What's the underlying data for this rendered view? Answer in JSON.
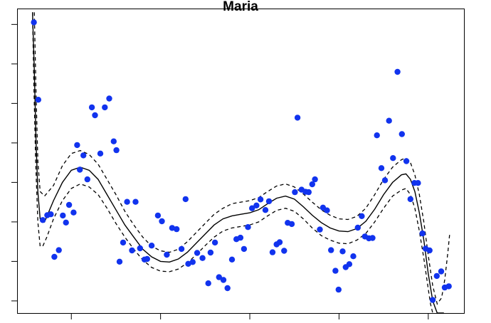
{
  "chart_data": {
    "type": "scatter",
    "title": "Maria",
    "xlabel": "",
    "ylabel": "",
    "xlim": [
      0,
      1
    ],
    "ylim": [
      0,
      1
    ],
    "x_ticks": [
      0.12,
      0.32,
      0.52,
      0.72,
      0.92
    ],
    "y_ticks": [
      0.04,
      0.17,
      0.3,
      0.43,
      0.56,
      0.69,
      0.82,
      0.95
    ],
    "grid": false,
    "legend": "none",
    "colors": {
      "points": "#1133ee",
      "fit": "#000000",
      "band": "#000000"
    },
    "points": [
      [
        0.036,
        0.957
      ],
      [
        0.046,
        0.702
      ],
      [
        0.056,
        0.306
      ],
      [
        0.066,
        0.322
      ],
      [
        0.074,
        0.325
      ],
      [
        0.082,
        0.185
      ],
      [
        0.092,
        0.207
      ],
      [
        0.101,
        0.321
      ],
      [
        0.108,
        0.298
      ],
      [
        0.115,
        0.356
      ],
      [
        0.125,
        0.331
      ],
      [
        0.133,
        0.553
      ],
      [
        0.139,
        0.472
      ],
      [
        0.147,
        0.519
      ],
      [
        0.156,
        0.44
      ],
      [
        0.166,
        0.677
      ],
      [
        0.173,
        0.651
      ],
      [
        0.185,
        0.525
      ],
      [
        0.195,
        0.677
      ],
      [
        0.205,
        0.706
      ],
      [
        0.215,
        0.565
      ],
      [
        0.221,
        0.536
      ],
      [
        0.228,
        0.169
      ],
      [
        0.236,
        0.232
      ],
      [
        0.245,
        0.366
      ],
      [
        0.256,
        0.206
      ],
      [
        0.264,
        0.366
      ],
      [
        0.274,
        0.213
      ],
      [
        0.284,
        0.176
      ],
      [
        0.29,
        0.178
      ],
      [
        0.3,
        0.222
      ],
      [
        0.314,
        0.321
      ],
      [
        0.323,
        0.302
      ],
      [
        0.334,
        0.192
      ],
      [
        0.346,
        0.28
      ],
      [
        0.356,
        0.276
      ],
      [
        0.367,
        0.211
      ],
      [
        0.376,
        0.375
      ],
      [
        0.382,
        0.162
      ],
      [
        0.392,
        0.168
      ],
      [
        0.402,
        0.198
      ],
      [
        0.414,
        0.181
      ],
      [
        0.427,
        0.098
      ],
      [
        0.432,
        0.199
      ],
      [
        0.442,
        0.232
      ],
      [
        0.451,
        0.118
      ],
      [
        0.461,
        0.109
      ],
      [
        0.47,
        0.082
      ],
      [
        0.48,
        0.176
      ],
      [
        0.49,
        0.243
      ],
      [
        0.499,
        0.248
      ],
      [
        0.507,
        0.211
      ],
      [
        0.516,
        0.283
      ],
      [
        0.525,
        0.345
      ],
      [
        0.535,
        0.354
      ],
      [
        0.544,
        0.374
      ],
      [
        0.555,
        0.339
      ],
      [
        0.563,
        0.368
      ],
      [
        0.571,
        0.2
      ],
      [
        0.58,
        0.226
      ],
      [
        0.587,
        0.233
      ],
      [
        0.597,
        0.205
      ],
      [
        0.605,
        0.297
      ],
      [
        0.614,
        0.293
      ],
      [
        0.621,
        0.398
      ],
      [
        0.627,
        0.643
      ],
      [
        0.636,
        0.406
      ],
      [
        0.645,
        0.399
      ],
      [
        0.652,
        0.398
      ],
      [
        0.66,
        0.424
      ],
      [
        0.666,
        0.44
      ],
      [
        0.677,
        0.275
      ],
      [
        0.684,
        0.347
      ],
      [
        0.693,
        0.338
      ],
      [
        0.702,
        0.207
      ],
      [
        0.712,
        0.139
      ],
      [
        0.719,
        0.077
      ],
      [
        0.728,
        0.203
      ],
      [
        0.735,
        0.151
      ],
      [
        0.743,
        0.161
      ],
      [
        0.752,
        0.187
      ],
      [
        0.762,
        0.281
      ],
      [
        0.771,
        0.319
      ],
      [
        0.778,
        0.252
      ],
      [
        0.787,
        0.246
      ],
      [
        0.795,
        0.247
      ],
      [
        0.805,
        0.585
      ],
      [
        0.815,
        0.477
      ],
      [
        0.823,
        0.437
      ],
      [
        0.832,
        0.633
      ],
      [
        0.841,
        0.51
      ],
      [
        0.851,
        0.794
      ],
      [
        0.861,
        0.589
      ],
      [
        0.871,
        0.5
      ],
      [
        0.88,
        0.375
      ],
      [
        0.889,
        0.428
      ],
      [
        0.897,
        0.428
      ],
      [
        0.907,
        0.262
      ],
      [
        0.914,
        0.212
      ],
      [
        0.923,
        0.206
      ],
      [
        0.93,
        0.043
      ],
      [
        0.939,
        0.122
      ],
      [
        0.949,
        0.137
      ],
      [
        0.957,
        0.084
      ],
      [
        0.966,
        0.088
      ]
    ],
    "fit": [
      [
        0.033,
        0.99
      ],
      [
        0.037,
        0.8
      ],
      [
        0.041,
        0.56
      ],
      [
        0.045,
        0.4
      ],
      [
        0.05,
        0.31
      ],
      [
        0.06,
        0.3
      ],
      [
        0.08,
        0.37
      ],
      [
        0.1,
        0.43
      ],
      [
        0.12,
        0.47
      ],
      [
        0.14,
        0.48
      ],
      [
        0.16,
        0.47
      ],
      [
        0.18,
        0.44
      ],
      [
        0.2,
        0.39
      ],
      [
        0.22,
        0.34
      ],
      [
        0.24,
        0.29
      ],
      [
        0.26,
        0.25
      ],
      [
        0.28,
        0.21
      ],
      [
        0.3,
        0.185
      ],
      [
        0.32,
        0.17
      ],
      [
        0.34,
        0.168
      ],
      [
        0.36,
        0.178
      ],
      [
        0.38,
        0.2
      ],
      [
        0.4,
        0.23
      ],
      [
        0.42,
        0.26
      ],
      [
        0.44,
        0.29
      ],
      [
        0.46,
        0.31
      ],
      [
        0.48,
        0.32
      ],
      [
        0.5,
        0.325
      ],
      [
        0.52,
        0.33
      ],
      [
        0.54,
        0.34
      ],
      [
        0.56,
        0.36
      ],
      [
        0.58,
        0.378
      ],
      [
        0.6,
        0.385
      ],
      [
        0.62,
        0.375
      ],
      [
        0.64,
        0.35
      ],
      [
        0.66,
        0.322
      ],
      [
        0.68,
        0.298
      ],
      [
        0.7,
        0.28
      ],
      [
        0.72,
        0.27
      ],
      [
        0.74,
        0.268
      ],
      [
        0.76,
        0.278
      ],
      [
        0.78,
        0.302
      ],
      [
        0.8,
        0.342
      ],
      [
        0.82,
        0.39
      ],
      [
        0.84,
        0.43
      ],
      [
        0.86,
        0.455
      ],
      [
        0.87,
        0.458
      ],
      [
        0.88,
        0.44
      ],
      [
        0.89,
        0.4
      ],
      [
        0.9,
        0.33
      ],
      [
        0.91,
        0.24
      ],
      [
        0.92,
        0.13
      ],
      [
        0.93,
        0.04
      ],
      [
        0.94,
        -0.02
      ],
      [
        0.955,
        -0.03
      ]
    ],
    "band_upper": [
      [
        0.037,
        0.99
      ],
      [
        0.041,
        0.72
      ],
      [
        0.045,
        0.5
      ],
      [
        0.05,
        0.4
      ],
      [
        0.06,
        0.385
      ],
      [
        0.08,
        0.42
      ],
      [
        0.1,
        0.485
      ],
      [
        0.12,
        0.525
      ],
      [
        0.14,
        0.535
      ],
      [
        0.16,
        0.522
      ],
      [
        0.18,
        0.49
      ],
      [
        0.2,
        0.44
      ],
      [
        0.22,
        0.39
      ],
      [
        0.24,
        0.335
      ],
      [
        0.26,
        0.29
      ],
      [
        0.28,
        0.25
      ],
      [
        0.3,
        0.22
      ],
      [
        0.32,
        0.205
      ],
      [
        0.34,
        0.2
      ],
      [
        0.36,
        0.21
      ],
      [
        0.38,
        0.235
      ],
      [
        0.4,
        0.265
      ],
      [
        0.42,
        0.295
      ],
      [
        0.44,
        0.325
      ],
      [
        0.46,
        0.345
      ],
      [
        0.48,
        0.36
      ],
      [
        0.5,
        0.365
      ],
      [
        0.52,
        0.37
      ],
      [
        0.54,
        0.38
      ],
      [
        0.56,
        0.4
      ],
      [
        0.58,
        0.418
      ],
      [
        0.6,
        0.425
      ],
      [
        0.62,
        0.415
      ],
      [
        0.64,
        0.392
      ],
      [
        0.66,
        0.365
      ],
      [
        0.68,
        0.34
      ],
      [
        0.7,
        0.322
      ],
      [
        0.72,
        0.31
      ],
      [
        0.74,
        0.308
      ],
      [
        0.76,
        0.318
      ],
      [
        0.78,
        0.345
      ],
      [
        0.8,
        0.39
      ],
      [
        0.82,
        0.44
      ],
      [
        0.84,
        0.48
      ],
      [
        0.86,
        0.505
      ],
      [
        0.87,
        0.51
      ],
      [
        0.88,
        0.495
      ],
      [
        0.89,
        0.455
      ],
      [
        0.9,
        0.39
      ],
      [
        0.91,
        0.3
      ],
      [
        0.92,
        0.19
      ],
      [
        0.93,
        0.09
      ],
      [
        0.94,
        0.03
      ],
      [
        0.95,
        0.05
      ],
      [
        0.957,
        0.11
      ],
      [
        0.964,
        0.2
      ],
      [
        0.968,
        0.26
      ]
    ],
    "band_lower": [
      [
        0.033,
        0.99
      ],
      [
        0.036,
        0.75
      ],
      [
        0.04,
        0.5
      ],
      [
        0.045,
        0.3
      ],
      [
        0.05,
        0.22
      ],
      [
        0.056,
        0.22
      ],
      [
        0.065,
        0.25
      ],
      [
        0.08,
        0.31
      ],
      [
        0.1,
        0.37
      ],
      [
        0.12,
        0.41
      ],
      [
        0.14,
        0.425
      ],
      [
        0.16,
        0.415
      ],
      [
        0.18,
        0.39
      ],
      [
        0.2,
        0.345
      ],
      [
        0.22,
        0.295
      ],
      [
        0.24,
        0.25
      ],
      [
        0.26,
        0.21
      ],
      [
        0.28,
        0.175
      ],
      [
        0.3,
        0.15
      ],
      [
        0.32,
        0.138
      ],
      [
        0.34,
        0.136
      ],
      [
        0.36,
        0.145
      ],
      [
        0.38,
        0.165
      ],
      [
        0.4,
        0.192
      ],
      [
        0.42,
        0.222
      ],
      [
        0.44,
        0.25
      ],
      [
        0.46,
        0.27
      ],
      [
        0.48,
        0.28
      ],
      [
        0.5,
        0.285
      ],
      [
        0.52,
        0.29
      ],
      [
        0.54,
        0.3
      ],
      [
        0.56,
        0.32
      ],
      [
        0.58,
        0.338
      ],
      [
        0.6,
        0.345
      ],
      [
        0.62,
        0.335
      ],
      [
        0.64,
        0.31
      ],
      [
        0.66,
        0.28
      ],
      [
        0.68,
        0.255
      ],
      [
        0.7,
        0.24
      ],
      [
        0.72,
        0.23
      ],
      [
        0.74,
        0.228
      ],
      [
        0.76,
        0.24
      ],
      [
        0.78,
        0.262
      ],
      [
        0.8,
        0.3
      ],
      [
        0.82,
        0.345
      ],
      [
        0.84,
        0.385
      ],
      [
        0.86,
        0.405
      ],
      [
        0.87,
        0.41
      ],
      [
        0.88,
        0.39
      ],
      [
        0.89,
        0.345
      ],
      [
        0.9,
        0.27
      ],
      [
        0.91,
        0.18
      ],
      [
        0.92,
        0.08
      ],
      [
        0.925,
        0.03
      ],
      [
        0.93,
        -0.02
      ]
    ]
  }
}
